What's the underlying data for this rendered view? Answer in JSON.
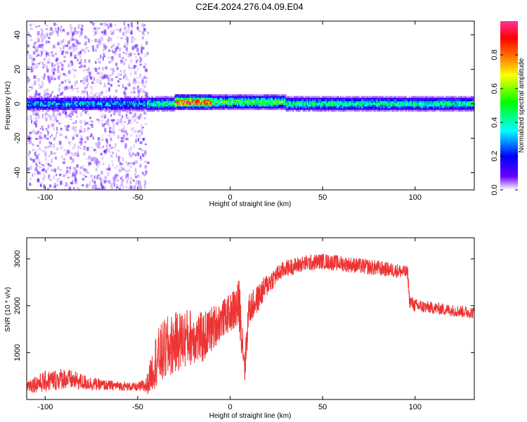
{
  "figure": {
    "title": "C2E4.2024.276.04.09.E04"
  },
  "chart_data": [
    {
      "type": "heatmap",
      "xlabel": "Height of straight line (km)",
      "ylabel": "Frequency (Hz)",
      "xlim": [
        -110,
        132
      ],
      "ylim": [
        -50,
        48
      ],
      "xticks": [
        -100,
        -50,
        0,
        50,
        100
      ],
      "yticks": [
        -40,
        -20,
        0,
        20,
        40
      ],
      "colorbar": {
        "label": "Normalized spectral amplitude",
        "range": [
          0,
          1
        ],
        "ticks": [
          0.0,
          0.2,
          0.4,
          0.6,
          0.8
        ],
        "tick_labels": [
          "0.0",
          "0.2",
          "0.4",
          "0.6",
          "0.8"
        ],
        "colormap": [
          "#ffffff",
          "#6600ff",
          "#0000ff",
          "#00ffff",
          "#00ff00",
          "#ffff00",
          "#ff8000",
          "#ff0000",
          "#ff3399"
        ]
      },
      "noise_region_x": [
        -110,
        -45
      ],
      "bands": [
        {
          "x_start": -110,
          "x_end": -45,
          "center_hz": 0,
          "amplitude": 0.3
        },
        {
          "x_start": -45,
          "x_end": -30,
          "center_hz": 0,
          "amplitude": 0.45
        },
        {
          "x_start": -30,
          "x_end": -10,
          "center_hz": 1,
          "amplitude": 0.9
        },
        {
          "x_start": -10,
          "x_end": 30,
          "center_hz": 1,
          "amplitude": 0.55
        },
        {
          "x_start": 30,
          "x_end": 132,
          "center_hz": 0,
          "amplitude": 0.45
        }
      ]
    },
    {
      "type": "line",
      "xlabel": "Height of straight line (km)",
      "ylabel": "SNR (10 * v/v)",
      "xlim": [
        -110,
        132
      ],
      "ylim": [
        0,
        3450
      ],
      "xticks": [
        -100,
        -50,
        0,
        50,
        100
      ],
      "yticks": [
        1000,
        2000,
        3000
      ],
      "color": "#ee3333",
      "x": [
        -110,
        -100,
        -90,
        -80,
        -70,
        -60,
        -50,
        -45,
        -40,
        -35,
        -30,
        -25,
        -20,
        -15,
        -10,
        -5,
        0,
        5,
        8,
        10,
        15,
        20,
        25,
        30,
        40,
        50,
        60,
        70,
        80,
        90,
        96,
        97,
        100,
        110,
        120,
        132
      ],
      "y": [
        300,
        380,
        450,
        370,
        310,
        290,
        260,
        300,
        850,
        1050,
        1200,
        1300,
        1350,
        1300,
        1500,
        1700,
        1850,
        2000,
        700,
        1900,
        2150,
        2450,
        2650,
        2800,
        2900,
        2950,
        2900,
        2850,
        2800,
        2750,
        2700,
        2100,
        2000,
        1950,
        1900,
        1850
      ],
      "noise_amp": [
        150,
        230,
        230,
        180,
        120,
        100,
        90,
        200,
        600,
        700,
        650,
        650,
        600,
        550,
        500,
        400,
        400,
        600,
        400,
        350,
        300,
        250,
        200,
        180,
        180,
        170,
        170,
        170,
        170,
        150,
        150,
        150,
        150,
        130,
        130,
        130
      ]
    }
  ]
}
